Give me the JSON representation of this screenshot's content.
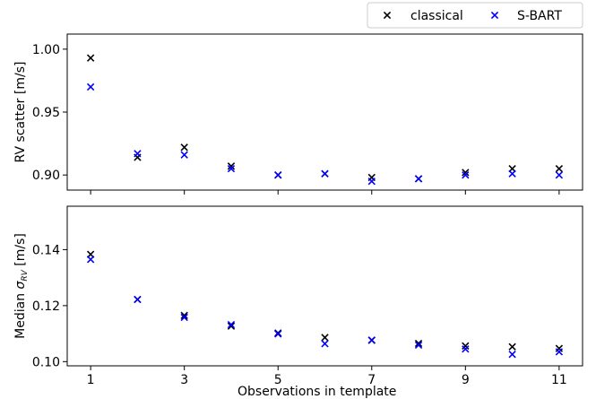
{
  "colors": {
    "classical": "#000000",
    "sbart": "#0000ff",
    "axis": "#000000"
  },
  "legend": {
    "placement": "top-right",
    "entries": [
      "classical",
      "S-BART"
    ]
  },
  "chart_data": [
    {
      "type": "scatter",
      "panel": "top",
      "ylabel": "RV scatter [m/s]",
      "xlabel": "",
      "xlim": [
        0.5,
        11.5
      ],
      "ylim": [
        0.888,
        1.012
      ],
      "yticks": [
        "0.90",
        "0.95",
        "1.00"
      ],
      "ytick_values": [
        0.9,
        0.95,
        1.0
      ],
      "x": [
        1,
        2,
        3,
        4,
        5,
        6,
        7,
        8,
        9,
        10,
        11
      ],
      "series": [
        {
          "name": "classical",
          "values": [
            0.993,
            0.914,
            0.922,
            0.907,
            0.9,
            0.901,
            0.898,
            0.897,
            0.902,
            0.905,
            0.905
          ]
        },
        {
          "name": "S-BART",
          "values": [
            0.97,
            0.917,
            0.916,
            0.905,
            0.9,
            0.901,
            0.895,
            0.897,
            0.9,
            0.901,
            0.9
          ]
        }
      ]
    },
    {
      "type": "scatter",
      "panel": "bottom",
      "ylabel_main": "Median ",
      "ylabel_symbol": "σ",
      "ylabel_sub": "RV",
      "ylabel_unit": " [m/s]",
      "xlabel": "Observations in template",
      "xlim": [
        0.5,
        11.5
      ],
      "ylim": [
        0.0985,
        0.1555
      ],
      "yticks": [
        "0.10",
        "0.12",
        "0.14"
      ],
      "ytick_values": [
        0.1,
        0.12,
        0.14
      ],
      "xticks": [
        "1",
        "3",
        "5",
        "7",
        "9",
        "11"
      ],
      "xtick_values": [
        1,
        3,
        5,
        7,
        9,
        11
      ],
      "x": [
        1,
        2,
        3,
        4,
        5,
        6,
        7,
        8,
        9,
        10,
        11
      ],
      "series": [
        {
          "name": "classical",
          "values": [
            0.1383,
            0.1222,
            0.1165,
            0.1127,
            0.1102,
            0.1086,
            0.1076,
            0.1065,
            0.1056,
            0.1053,
            0.1047
          ]
        },
        {
          "name": "S-BART",
          "values": [
            0.1365,
            0.1222,
            0.1158,
            0.1132,
            0.1099,
            0.1064,
            0.1077,
            0.1059,
            0.1045,
            0.1026,
            0.1035
          ]
        }
      ]
    }
  ]
}
